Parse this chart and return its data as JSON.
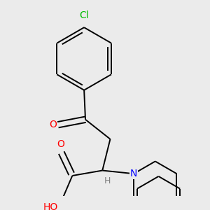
{
  "background_color": "#ebebeb",
  "atom_colors": {
    "O": "#ff0000",
    "N": "#0000ff",
    "Cl": "#00bb00",
    "C": "#000000",
    "H": "#808080"
  },
  "bond_color": "#000000",
  "bond_width": 1.4,
  "figsize": [
    3.0,
    3.0
  ],
  "dpi": 100
}
